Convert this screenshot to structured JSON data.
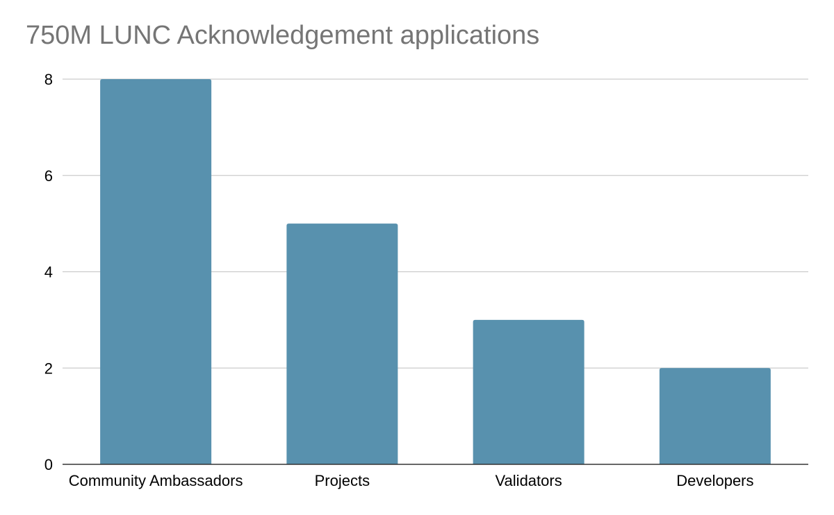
{
  "chart_data": {
    "type": "bar",
    "title": "750M LUNC Acknowledgement applications",
    "xlabel": "",
    "ylabel": "",
    "categories": [
      "Community Ambassadors",
      "Projects",
      "Validators",
      "Developers"
    ],
    "values": [
      8,
      5,
      3,
      2
    ],
    "ylim": [
      0,
      8
    ],
    "yticks": [
      "0",
      "2",
      "4",
      "6",
      "8"
    ],
    "grid": true,
    "legend": "none",
    "colors": {
      "bar": "#5891ae",
      "grid": "#cccccc",
      "axis": "#333333",
      "title": "#757575"
    }
  }
}
